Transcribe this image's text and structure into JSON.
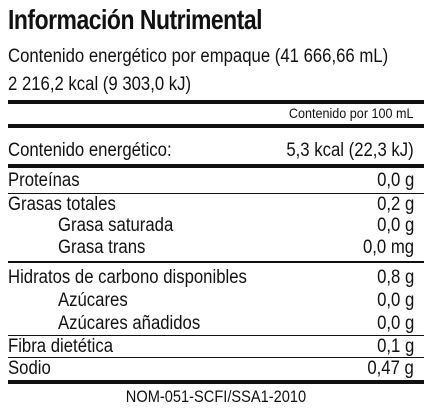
{
  "title": "Información Nutrimental",
  "package_energy_line": "Contenido energético por empaque (41 666,66 mL)",
  "package_energy_values": "2 216,2 kcal (9 303,0 kJ)",
  "column_header": "Contenido por 100 mL",
  "rows": [
    {
      "label": "Contenido energético:",
      "value": "5,3 kcal (22,3 kJ)"
    },
    {
      "label": "Proteínas",
      "value": "0,0 g"
    },
    {
      "label": "Grasas totales",
      "value": "0,2 g"
    },
    {
      "label": "Grasa saturada",
      "value": "0,0 g"
    },
    {
      "label": "Grasa trans",
      "value": "0,0 mg"
    },
    {
      "label": "Hidratos de carbono disponibles",
      "value": "0,8 g"
    },
    {
      "label": "Azúcares",
      "value": "0,0 g"
    },
    {
      "label": "Azúcares añadidos",
      "value": "0,0 g"
    },
    {
      "label": "Fibra dietética",
      "value": "0,1 g"
    },
    {
      "label": "Sodio",
      "value": "0,47 g"
    }
  ],
  "footer": "NOM-051-SCFI/SSA1-2010"
}
